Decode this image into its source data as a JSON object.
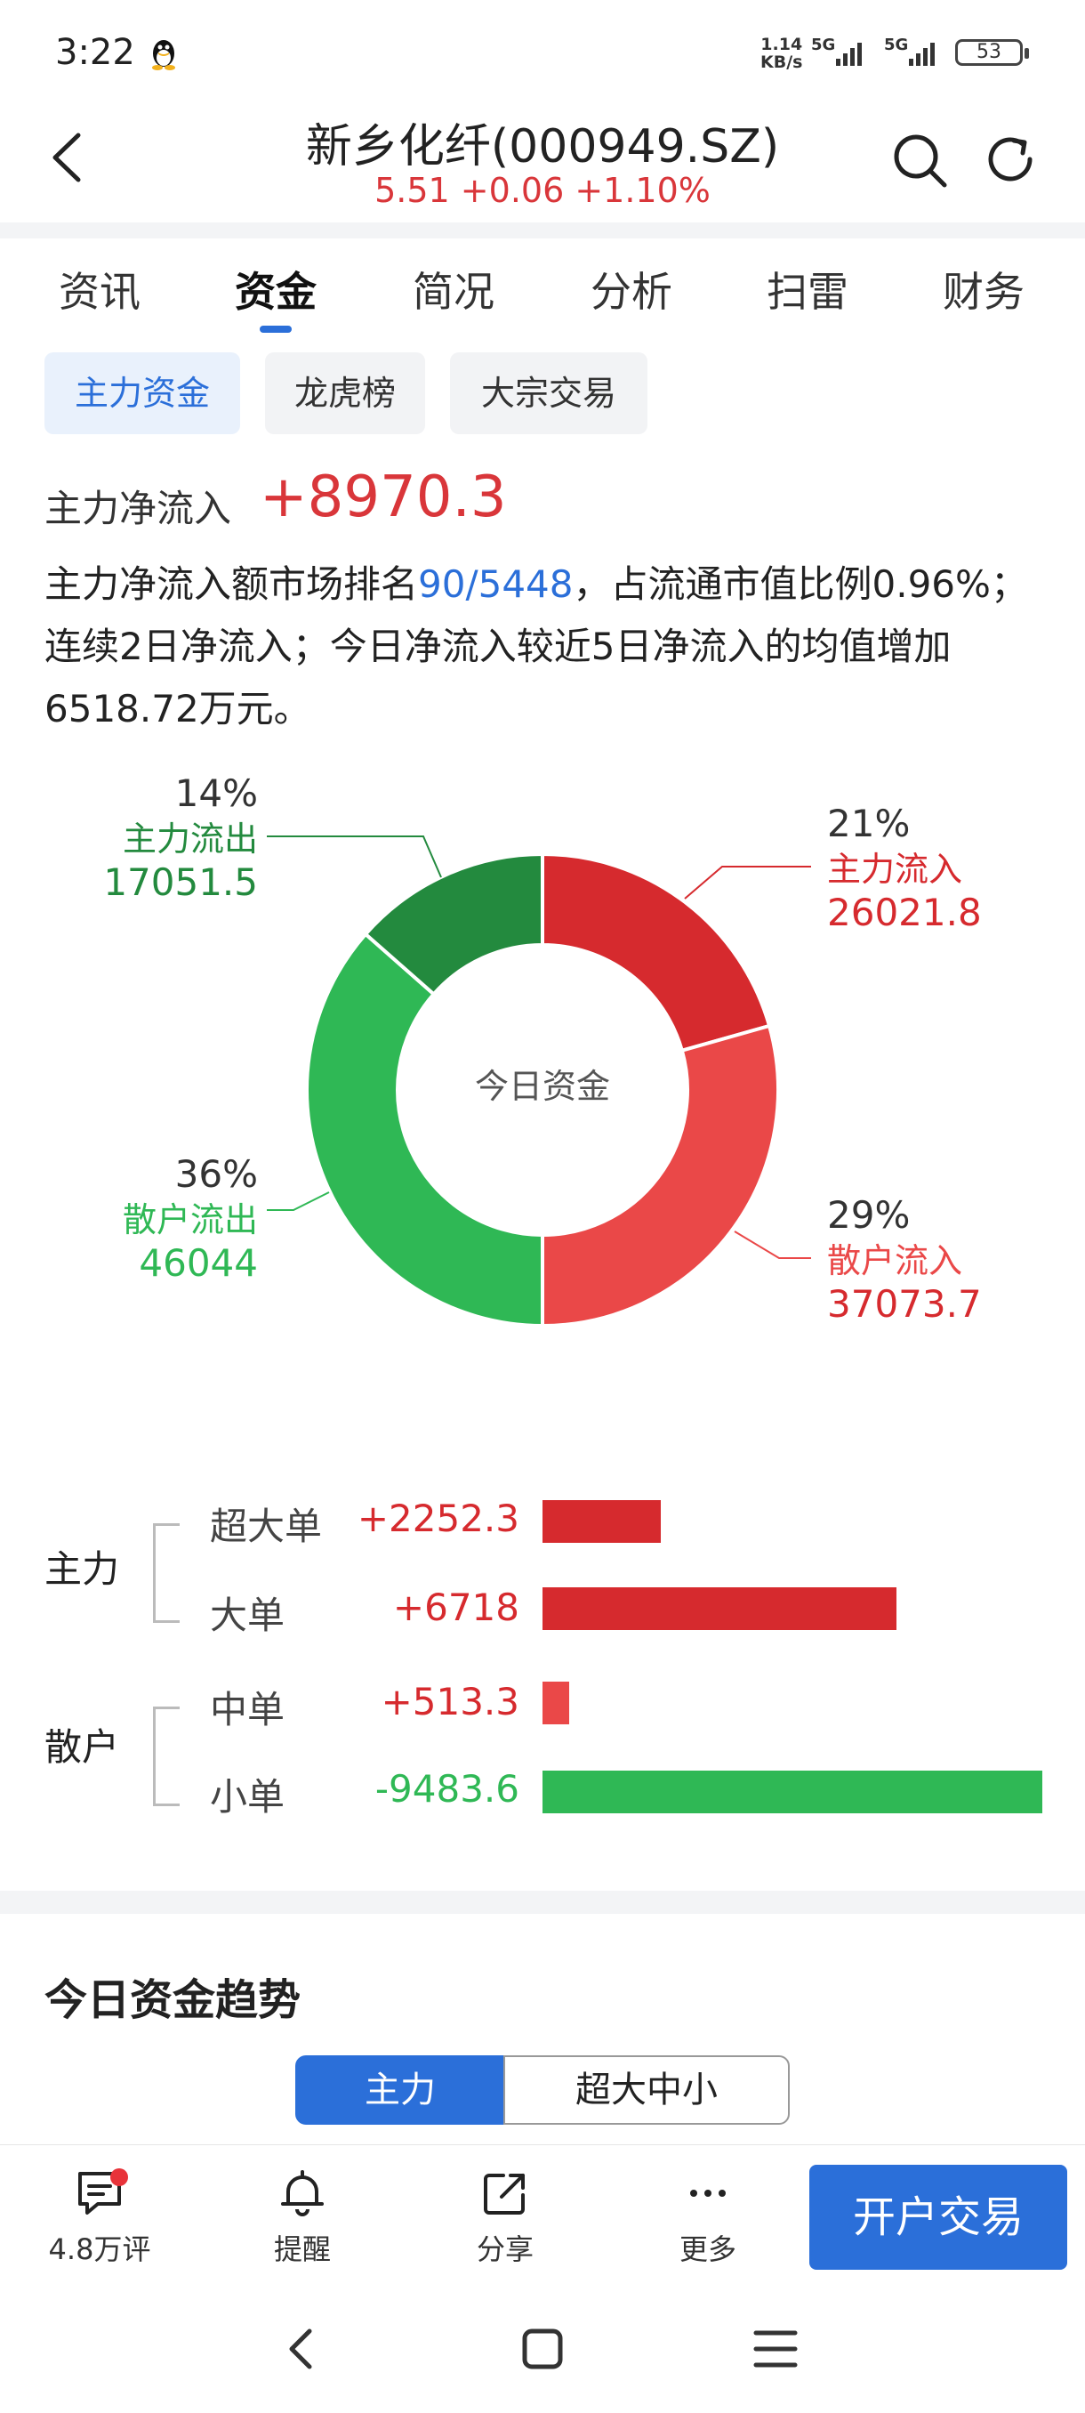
{
  "status": {
    "time": "3:22",
    "speed_value": "1.14",
    "speed_unit": "KB/s",
    "net1": "5G",
    "net2": "5G",
    "battery": "53"
  },
  "header": {
    "title": "新乡化纤(000949.SZ)",
    "quote": "5.51 +0.06 +1.10%"
  },
  "tabs": [
    "资讯",
    "资金",
    "简况",
    "分析",
    "扫雷",
    "财务"
  ],
  "subtabs": [
    "主力资金",
    "龙虎榜",
    "大宗交易"
  ],
  "netflow": {
    "label": "主力净流入",
    "value": "+8970.3"
  },
  "summary": {
    "part1": "主力净流入额市场排名",
    "rank": "90/5448",
    "part2": "，占流通市值比例0.96%；连续2日净流入；今日净流入较近5日净流入的均值增加6518.72万元。"
  },
  "chart_data": {
    "type": "pie",
    "title": "今日资金",
    "slices": [
      {
        "name": "主力流入",
        "percent": "21%",
        "value": 26021.8,
        "value_label": "26021.8",
        "color": "#d62a2e"
      },
      {
        "name": "散户流入",
        "percent": "29%",
        "value": 37073.7,
        "value_label": "37073.7",
        "color": "#ea4848"
      },
      {
        "name": "散户流出",
        "percent": "36%",
        "value": 46044,
        "value_label": "46044",
        "color": "#2fb855"
      },
      {
        "name": "主力流出",
        "percent": "14%",
        "value": 17051.5,
        "value_label": "17051.5",
        "color": "#238a3e"
      }
    ]
  },
  "flows": {
    "main_label": "主力",
    "retail_label": "散户",
    "rows": [
      {
        "name": "超大单",
        "value": 2252.3,
        "value_label": "+2252.3",
        "color": "#d62a2e"
      },
      {
        "name": "大单",
        "value": 6718,
        "value_label": "+6718",
        "color": "#d62a2e"
      },
      {
        "name": "中单",
        "value": 513.3,
        "value_label": "+513.3",
        "color": "#ea4848"
      },
      {
        "name": "小单",
        "value": -9483.6,
        "value_label": "-9483.6",
        "color": "#2fb855"
      }
    ]
  },
  "trend": {
    "title": "今日资金趋势",
    "seg_a": "主力",
    "seg_b": "超大中小"
  },
  "bottombar": {
    "comment_label": "4.8万评",
    "remind_label": "提醒",
    "share_label": "分享",
    "more_label": "更多",
    "trade_label": "开户交易"
  }
}
